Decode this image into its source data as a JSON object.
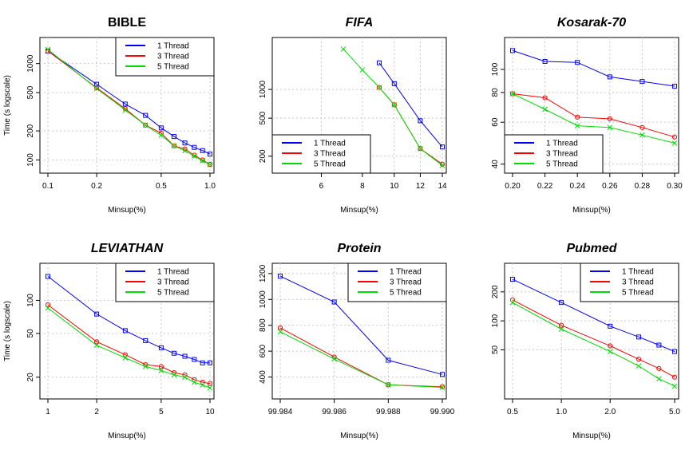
{
  "chart_data": [
    {
      "type": "line",
      "title": "BIBLE",
      "title_style": "bold",
      "xlabel": "Minsup(%)",
      "ylabel": "Time (s logscale)",
      "xscale": "log",
      "yscale": "log",
      "xlim": [
        0.1,
        1.0
      ],
      "ylim": [
        85,
        1600
      ],
      "xticks": [
        0.1,
        0.2,
        0.5,
        1.0
      ],
      "xtick_labels": [
        "0.1",
        "0.2",
        "0.5",
        "1.0"
      ],
      "yticks": [
        100,
        200,
        500,
        1000
      ],
      "ytick_labels": [
        "100",
        "200",
        "500",
        "1000"
      ],
      "grid": true,
      "legend": "top-right",
      "x": [
        0.1,
        0.2,
        0.3,
        0.4,
        0.5,
        0.6,
        0.7,
        0.8,
        0.9,
        1.0
      ],
      "series": [
        {
          "name": "1 Thread",
          "color": "#0000ff",
          "marker": "square",
          "values": [
            1350,
            610,
            380,
            290,
            215,
            175,
            150,
            135,
            125,
            115
          ]
        },
        {
          "name": "3 Thread",
          "color": "#ff0000",
          "marker": "circle",
          "values": [
            1350,
            560,
            340,
            230,
            190,
            140,
            130,
            112,
            100,
            90
          ]
        },
        {
          "name": "5 Thread",
          "color": "#00dd00",
          "marker": "x",
          "values": [
            1400,
            550,
            330,
            230,
            180,
            140,
            125,
            110,
            98,
            90
          ]
        }
      ]
    },
    {
      "type": "line",
      "title": "FIFA",
      "title_style": "bold-italic",
      "xlabel": "Minsup(%)",
      "ylabel": "",
      "xscale": "log",
      "yscale": "log",
      "xlim": [
        4.5,
        14
      ],
      "ylim": [
        155,
        3000
      ],
      "xticks": [
        6,
        8,
        10,
        12,
        14
      ],
      "xtick_labels": [
        "6",
        "8",
        "10",
        "12",
        "14"
      ],
      "yticks": [
        200,
        500,
        1000
      ],
      "ytick_labels": [
        "200",
        "500",
        "1000"
      ],
      "grid": true,
      "legend": "bottom-left",
      "x": [
        7,
        8,
        9,
        10,
        12,
        14
      ],
      "series": [
        {
          "name": "1 Thread",
          "color": "#0000ff",
          "marker": "square",
          "values": [
            null,
            null,
            1900,
            1150,
            470,
            250
          ]
        },
        {
          "name": "3 Thread",
          "color": "#ff0000",
          "marker": "circle",
          "values": [
            null,
            null,
            1050,
            690,
            240,
            165
          ]
        },
        {
          "name": "5 Thread",
          "color": "#00dd00",
          "marker": "x",
          "values": [
            2650,
            1600,
            1050,
            690,
            240,
            160
          ]
        }
      ]
    },
    {
      "type": "line",
      "title": "Kosarak-70",
      "title_style": "bold-italic",
      "xlabel": "Minsup(%)",
      "ylabel": "",
      "xscale": "linear",
      "yscale": "log",
      "xlim": [
        0.2,
        0.3
      ],
      "ylim": [
        39,
        128
      ],
      "xticks": [
        0.2,
        0.22,
        0.24,
        0.26,
        0.28,
        0.3
      ],
      "xtick_labels": [
        "0.20",
        "0.22",
        "0.24",
        "0.26",
        "0.28",
        "0.30"
      ],
      "yticks": [
        40,
        60,
        80,
        100
      ],
      "ytick_labels": [
        "40",
        "60",
        "80",
        "100"
      ],
      "grid": true,
      "legend": "bottom-left",
      "x": [
        0.2,
        0.22,
        0.24,
        0.26,
        0.28,
        0.3
      ],
      "series": [
        {
          "name": "1 Thread",
          "color": "#0000ff",
          "marker": "square",
          "values": [
            120,
            108,
            107,
            93,
            89,
            85
          ]
        },
        {
          "name": "3 Thread",
          "color": "#ff0000",
          "marker": "circle",
          "values": [
            79,
            76,
            63,
            62,
            57,
            52
          ]
        },
        {
          "name": "5 Thread",
          "color": "#00dd00",
          "marker": "x",
          "values": [
            79,
            68,
            58,
            57,
            53,
            49
          ]
        }
      ]
    },
    {
      "type": "line",
      "title": "LEVIATHAN",
      "title_style": "bold-italic",
      "xlabel": "Minsup(%)",
      "ylabel": "Time (s logscale)",
      "xscale": "log",
      "yscale": "log",
      "xlim": [
        1,
        10
      ],
      "ylim": [
        14.5,
        190
      ],
      "xticks": [
        1,
        2,
        5,
        10
      ],
      "xtick_labels": [
        "1",
        "2",
        "5",
        "10"
      ],
      "yticks": [
        20,
        50,
        100
      ],
      "ytick_labels": [
        "20",
        "50",
        "100"
      ],
      "grid": true,
      "legend": "top-right",
      "x": [
        1,
        2,
        3,
        4,
        5,
        6,
        7,
        8,
        9,
        10
      ],
      "series": [
        {
          "name": "1 Thread",
          "color": "#0000ff",
          "marker": "square",
          "values": [
            165,
            75,
            53,
            43,
            37,
            33,
            31,
            29,
            27,
            27
          ]
        },
        {
          "name": "3 Thread",
          "color": "#ff0000",
          "marker": "circle",
          "values": [
            91,
            42,
            32,
            26,
            25,
            22,
            21,
            19,
            18,
            17.5
          ]
        },
        {
          "name": "5 Thread",
          "color": "#00dd00",
          "marker": "x",
          "values": [
            85,
            39,
            30,
            25,
            23,
            21,
            20,
            18,
            17,
            16
          ]
        }
      ]
    },
    {
      "type": "line",
      "title": "Protein",
      "title_style": "bold-italic",
      "xlabel": "Minsup(%)",
      "ylabel": "",
      "xscale": "linear",
      "yscale": "linear",
      "xlim": [
        99.984,
        99.99
      ],
      "ylim": [
        280,
        1230
      ],
      "xticks": [
        99.984,
        99.986,
        99.988,
        99.99
      ],
      "xtick_labels": [
        "99.984",
        "99.986",
        "99.988",
        "99.990"
      ],
      "yticks": [
        400,
        600,
        800,
        1000,
        1200
      ],
      "ytick_labels": [
        "400",
        "600",
        "800",
        "1000",
        "1200"
      ],
      "grid": true,
      "legend": "top-right",
      "x": [
        99.984,
        99.986,
        99.988,
        99.99
      ],
      "series": [
        {
          "name": "1 Thread",
          "color": "#0000ff",
          "marker": "square",
          "values": [
            1180,
            980,
            530,
            420
          ]
        },
        {
          "name": "3 Thread",
          "color": "#ff0000",
          "marker": "circle",
          "values": [
            780,
            555,
            340,
            325
          ]
        },
        {
          "name": "5 Thread",
          "color": "#00dd00",
          "marker": "x",
          "values": [
            750,
            540,
            340,
            320
          ]
        }
      ]
    },
    {
      "type": "line",
      "title": "Pubmed",
      "title_style": "bold-italic",
      "xlabel": "Minsup(%)",
      "ylabel": "",
      "xscale": "log",
      "yscale": "log",
      "xlim": [
        0.5,
        5.0
      ],
      "ylim": [
        18,
        340
      ],
      "xticks": [
        0.5,
        1.0,
        2.0,
        5.0
      ],
      "xtick_labels": [
        "0.5",
        "1.0",
        "2.0",
        "5.0"
      ],
      "yticks": [
        50,
        100,
        200
      ],
      "ytick_labels": [
        "50",
        "100",
        "200"
      ],
      "grid": true,
      "legend": "top-right",
      "x": [
        0.5,
        1.0,
        2.0,
        3.0,
        4.0,
        5.0
      ],
      "series": [
        {
          "name": "1 Thread",
          "color": "#0000ff",
          "marker": "square",
          "values": [
            270,
            155,
            88,
            68,
            56,
            48
          ]
        },
        {
          "name": "3 Thread",
          "color": "#ff0000",
          "marker": "circle",
          "values": [
            165,
            90,
            55,
            40,
            32,
            26
          ]
        },
        {
          "name": "5 Thread",
          "color": "#00dd00",
          "marker": "x",
          "values": [
            155,
            82,
            48,
            34,
            25,
            21
          ]
        }
      ]
    }
  ]
}
